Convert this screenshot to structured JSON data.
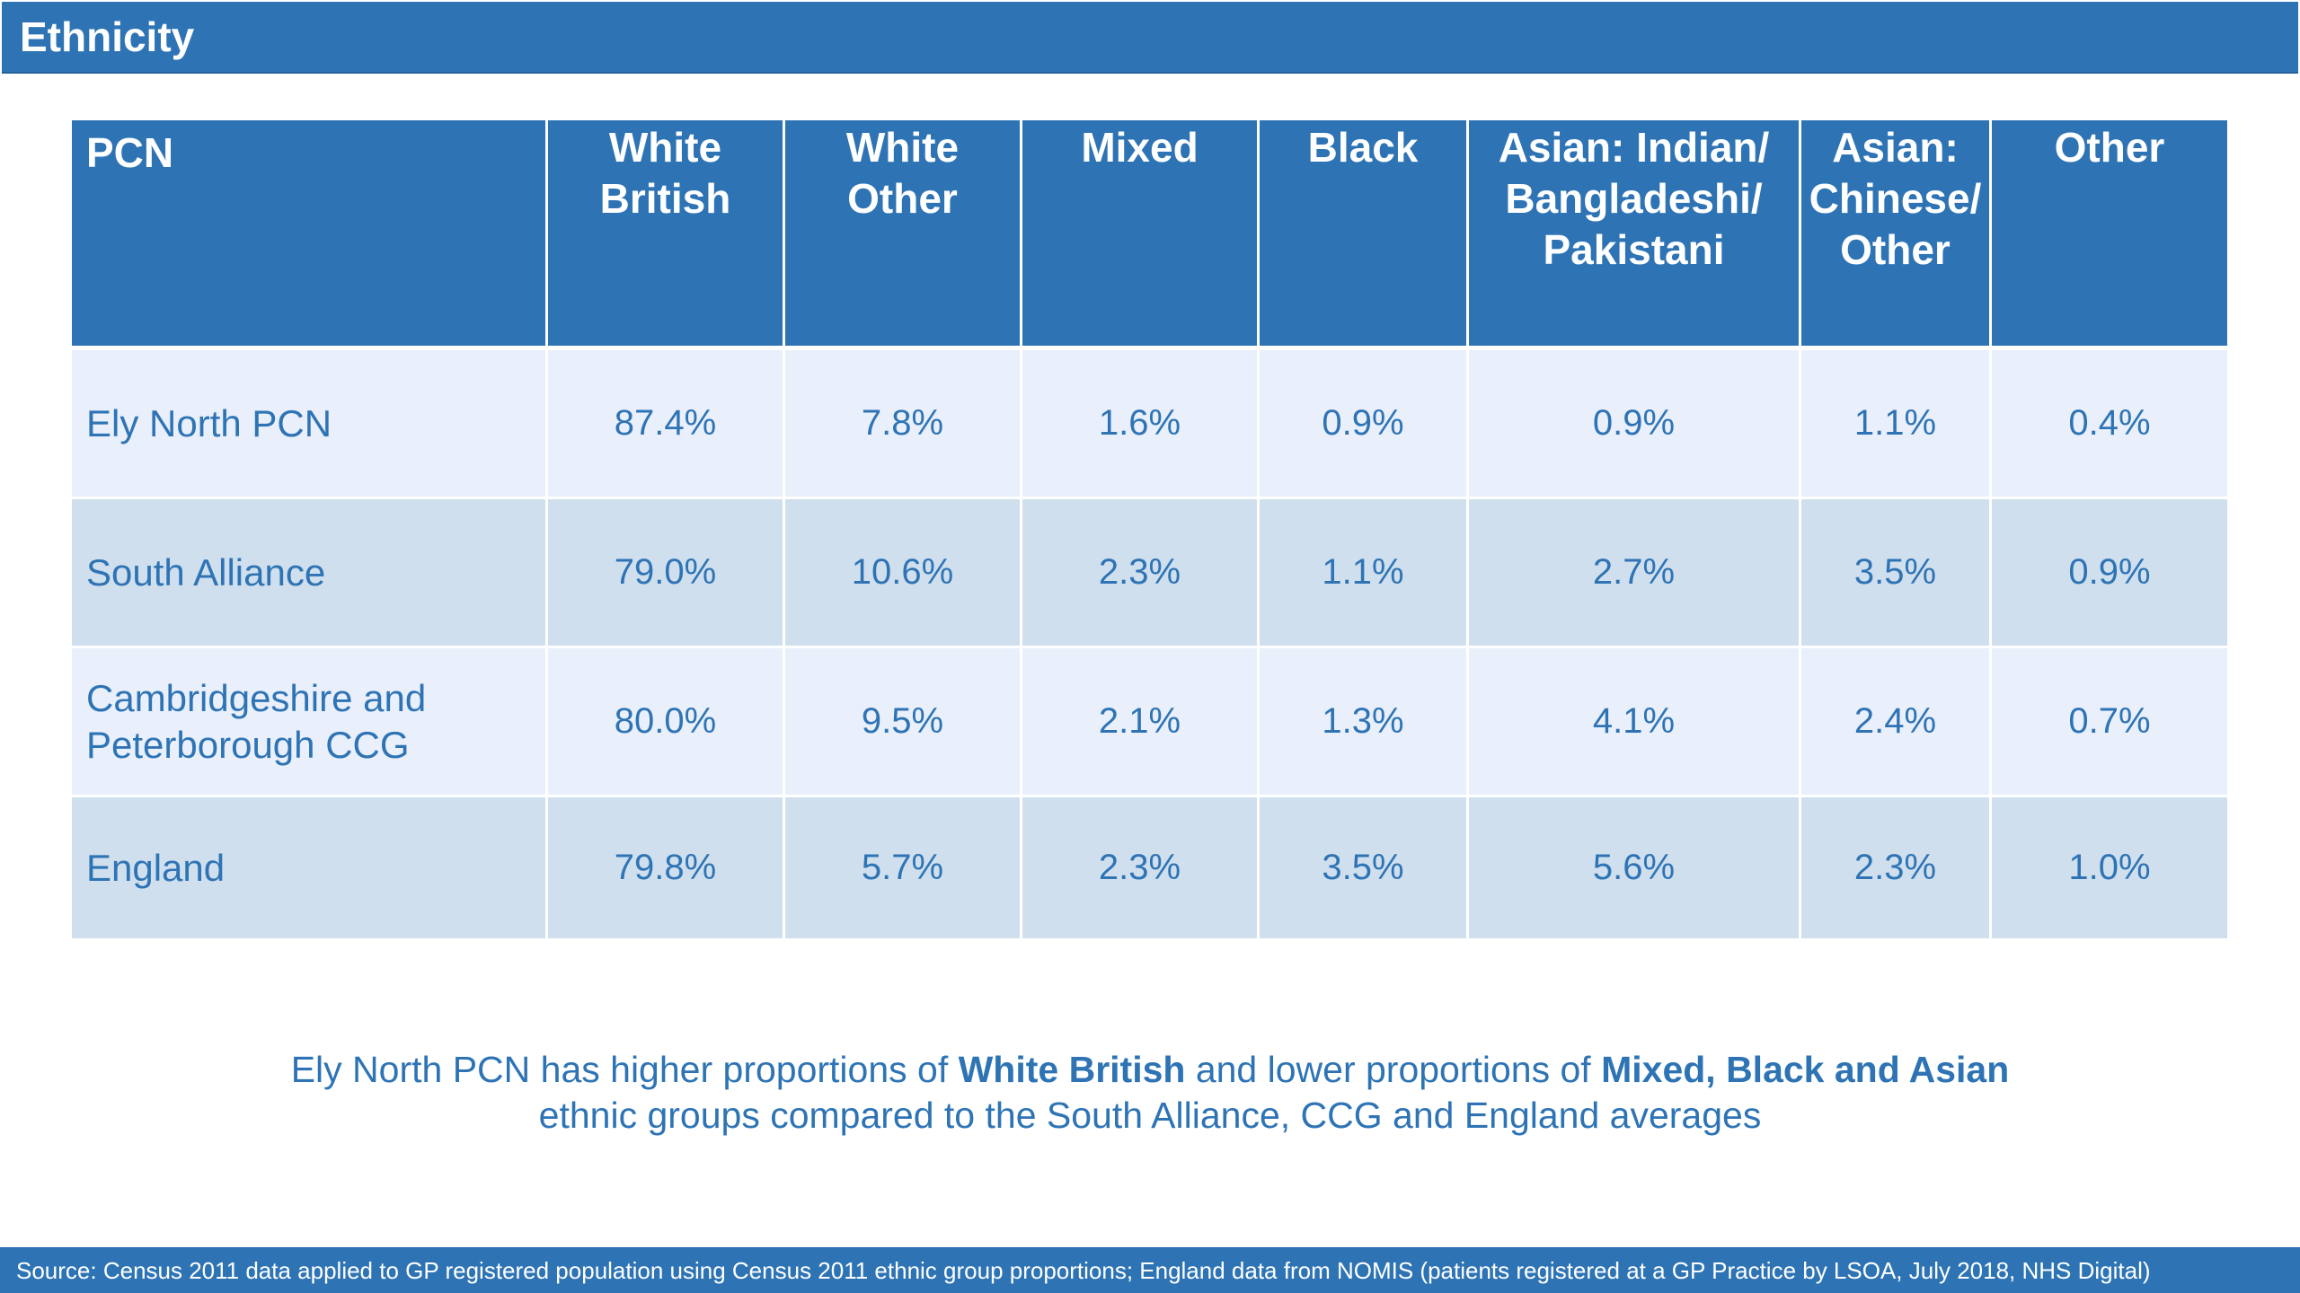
{
  "header": {
    "title": "Ethnicity"
  },
  "table": {
    "columns": [
      [
        "PCN"
      ],
      [
        "White",
        "British"
      ],
      [
        "White",
        "Other"
      ],
      [
        "Mixed"
      ],
      [
        "Black"
      ],
      [
        "Asian: Indian/",
        "Bangladeshi/",
        "Pakistani"
      ],
      [
        "Asian:",
        "Chinese/",
        "Other"
      ],
      [
        "Other"
      ]
    ],
    "rows": [
      {
        "name": [
          "Ely North PCN"
        ],
        "values": [
          "87.4%",
          "7.8%",
          "1.6%",
          "0.9%",
          "0.9%",
          "1.1%",
          "0.4%"
        ]
      },
      {
        "name": [
          "South Alliance"
        ],
        "values": [
          "79.0%",
          "10.6%",
          "2.3%",
          "1.1%",
          "2.7%",
          "3.5%",
          "0.9%"
        ]
      },
      {
        "name": [
          "Cambridgeshire and",
          "Peterborough CCG"
        ],
        "values": [
          "80.0%",
          "9.5%",
          "2.1%",
          "1.3%",
          "4.1%",
          "2.4%",
          "0.7%"
        ]
      },
      {
        "name": [
          "England"
        ],
        "values": [
          "79.8%",
          "5.7%",
          "2.3%",
          "3.5%",
          "5.6%",
          "2.3%",
          "1.0%"
        ]
      }
    ]
  },
  "summary": {
    "line1_a": "Ely North PCN has higher proportions of ",
    "line1_b": "White British",
    "line1_c": " and lower proportions of ",
    "line1_d": "Mixed, Black and Asian",
    "line2": "ethnic groups compared to the South Alliance, CCG and England averages"
  },
  "footer": {
    "source": "Source: Census 2011 data applied to GP registered population using Census 2011 ethnic group proportions; England data from NOMIS (patients registered at a GP Practice by LSOA, July 2018, NHS Digital)"
  },
  "colors": {
    "brand_blue": "#2e74b5",
    "row_light": "#e9effb",
    "row_dark": "#d0dfee"
  }
}
